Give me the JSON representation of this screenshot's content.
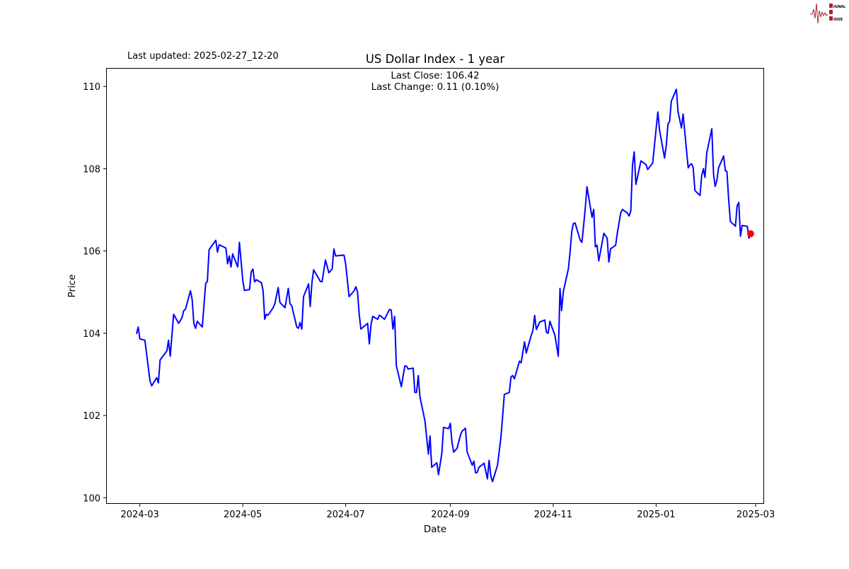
{
  "header": {
    "last_updated": "Last updated: 2025-02-27_12-20",
    "logo_text": "SIGNAL 2 NOISE"
  },
  "chart_data": {
    "type": "line",
    "title": "US Dollar Index - 1 year",
    "annotation_lines": [
      "Last Close: 106.42",
      "Last Change: 0.11 (0.10%)"
    ],
    "xlabel": "Date",
    "ylabel": "Price",
    "xlim": [
      "2024-02-10",
      "2025-03-06"
    ],
    "ylim": [
      99.85,
      110.45
    ],
    "x_ticks": [
      "2024-03",
      "2024-05",
      "2024-07",
      "2024-09",
      "2024-11",
      "2025-01",
      "2025-03"
    ],
    "y_ticks": [
      100,
      102,
      104,
      106,
      108,
      110
    ],
    "grid": false,
    "line_color": "#0000ff",
    "last_point_color": "#ff0000",
    "last_point": {
      "x": "2025-02-26",
      "y": 106.42
    },
    "series": [
      {
        "x": [
          "2024-02-28",
          "2024-02-29",
          "2024-03-01",
          "2024-03-04",
          "2024-03-07",
          "2024-03-08",
          "2024-03-11",
          "2024-03-12",
          "2024-03-13",
          "2024-03-17",
          "2024-03-18",
          "2024-03-19",
          "2024-03-21",
          "2024-03-24",
          "2024-03-26",
          "2024-03-27",
          "2024-03-28",
          "2024-03-31",
          "2024-04-01",
          "2024-04-02",
          "2024-04-03",
          "2024-04-04",
          "2024-04-07",
          "2024-04-09",
          "2024-04-10",
          "2024-04-11",
          "2024-04-15",
          "2024-04-16",
          "2024-04-17",
          "2024-04-21",
          "2024-04-22",
          "2024-04-23",
          "2024-04-24",
          "2024-04-25",
          "2024-04-28",
          "2024-04-29",
          "2024-05-01",
          "2024-05-02",
          "2024-05-05",
          "2024-05-06",
          "2024-05-07",
          "2024-05-08",
          "2024-05-09",
          "2024-05-12",
          "2024-05-13",
          "2024-05-14",
          "2024-05-15",
          "2024-05-16",
          "2024-05-19",
          "2024-05-20",
          "2024-05-22",
          "2024-05-23",
          "2024-05-26",
          "2024-05-28",
          "2024-05-29",
          "2024-05-30",
          "2024-06-02",
          "2024-06-03",
          "2024-06-04",
          "2024-06-05",
          "2024-06-06",
          "2024-06-09",
          "2024-06-10",
          "2024-06-11",
          "2024-06-12",
          "2024-06-16",
          "2024-06-17",
          "2024-06-19",
          "2024-06-21",
          "2024-06-23",
          "2024-06-24",
          "2024-06-25",
          "2024-06-30",
          "2024-07-01",
          "2024-07-03",
          "2024-07-06",
          "2024-07-07",
          "2024-07-08",
          "2024-07-09",
          "2024-07-10",
          "2024-07-14",
          "2024-07-15",
          "2024-07-16",
          "2024-07-17",
          "2024-07-20",
          "2024-07-21",
          "2024-07-24",
          "2024-07-27",
          "2024-07-28",
          "2024-07-29",
          "2024-07-30",
          "2024-07-31",
          "2024-08-03",
          "2024-08-05",
          "2024-08-06",
          "2024-08-07",
          "2024-08-10",
          "2024-08-11",
          "2024-08-12",
          "2024-08-13",
          "2024-08-14",
          "2024-08-17",
          "2024-08-19",
          "2024-08-20",
          "2024-08-21",
          "2024-08-24",
          "2024-08-25",
          "2024-08-27",
          "2024-08-28",
          "2024-08-31",
          "2024-09-01",
          "2024-09-02",
          "2024-09-03",
          "2024-09-05",
          "2024-09-07",
          "2024-09-08",
          "2024-09-10",
          "2024-09-11",
          "2024-09-14",
          "2024-09-15",
          "2024-09-16",
          "2024-09-17",
          "2024-09-18",
          "2024-09-21",
          "2024-09-23",
          "2024-09-24",
          "2024-09-25",
          "2024-09-26",
          "2024-09-29",
          "2024-10-01",
          "2024-10-02",
          "2024-10-03",
          "2024-10-06",
          "2024-10-07",
          "2024-10-08",
          "2024-10-09",
          "2024-10-12",
          "2024-10-13",
          "2024-10-14",
          "2024-10-15",
          "2024-10-16",
          "2024-10-19",
          "2024-10-20",
          "2024-10-21",
          "2024-10-22",
          "2024-10-24",
          "2024-10-27",
          "2024-10-28",
          "2024-10-29",
          "2024-10-30",
          "2024-11-02",
          "2024-11-04",
          "2024-11-05",
          "2024-11-06",
          "2024-11-07",
          "2024-11-10",
          "2024-11-11",
          "2024-11-12",
          "2024-11-13",
          "2024-11-14",
          "2024-11-17",
          "2024-11-18",
          "2024-11-19",
          "2024-11-20",
          "2024-11-21",
          "2024-11-24",
          "2024-11-25",
          "2024-11-26",
          "2024-11-27",
          "2024-11-28",
          "2024-12-01",
          "2024-12-03",
          "2024-12-04",
          "2024-12-05",
          "2024-12-08",
          "2024-12-09",
          "2024-12-11",
          "2024-12-12",
          "2024-12-15",
          "2024-12-16",
          "2024-12-17",
          "2024-12-18",
          "2024-12-19",
          "2024-12-20",
          "2024-12-23",
          "2024-12-26",
          "2024-12-27",
          "2024-12-30",
          "2024-12-31",
          "2025-01-02",
          "2025-01-03",
          "2025-01-06",
          "2025-01-07",
          "2025-01-08",
          "2025-01-09",
          "2025-01-10",
          "2025-01-13",
          "2025-01-14",
          "2025-01-16",
          "2025-01-17",
          "2025-01-20",
          "2025-01-21",
          "2025-01-22",
          "2025-01-23",
          "2025-01-24",
          "2025-01-27",
          "2025-01-28",
          "2025-01-29",
          "2025-01-30",
          "2025-01-31",
          "2025-02-03",
          "2025-02-04",
          "2025-02-05",
          "2025-02-06",
          "2025-02-07",
          "2025-02-10",
          "2025-02-11",
          "2025-02-12",
          "2025-02-13",
          "2025-02-14",
          "2025-02-17",
          "2025-02-18",
          "2025-02-19",
          "2025-02-20",
          "2025-02-21",
          "2025-02-24",
          "2025-02-25",
          "2025-02-26"
        ],
        "y": [
          103.98,
          104.15,
          103.86,
          103.83,
          102.84,
          102.72,
          102.92,
          102.79,
          103.35,
          103.57,
          103.83,
          103.44,
          104.46,
          104.24,
          104.38,
          104.55,
          104.58,
          105.03,
          104.82,
          104.24,
          104.12,
          104.29,
          104.15,
          105.21,
          105.26,
          106.03,
          106.26,
          105.97,
          106.15,
          106.07,
          105.69,
          105.88,
          105.61,
          105.93,
          105.61,
          106.21,
          105.28,
          105.04,
          105.06,
          105.49,
          105.56,
          105.25,
          105.3,
          105.23,
          105.04,
          104.34,
          104.46,
          104.44,
          104.62,
          104.72,
          105.11,
          104.75,
          104.62,
          105.09,
          104.72,
          104.67,
          104.15,
          104.12,
          104.26,
          104.1,
          104.89,
          105.2,
          104.65,
          105.23,
          105.54,
          105.26,
          105.25,
          105.78,
          105.47,
          105.56,
          106.05,
          105.88,
          105.9,
          105.68,
          104.89,
          105.03,
          105.13,
          105.01,
          104.46,
          104.1,
          104.24,
          103.74,
          104.21,
          104.41,
          104.34,
          104.44,
          104.34,
          104.58,
          104.56,
          104.1,
          104.41,
          103.21,
          102.7,
          103.2,
          103.2,
          103.13,
          103.15,
          102.56,
          102.56,
          102.97,
          102.46,
          101.86,
          101.06,
          101.5,
          100.74,
          100.85,
          100.56,
          101.08,
          101.71,
          101.68,
          101.81,
          101.35,
          101.11,
          101.2,
          101.52,
          101.62,
          101.69,
          101.11,
          100.79,
          100.89,
          100.6,
          100.62,
          100.74,
          100.84,
          100.46,
          100.91,
          100.53,
          100.39,
          100.79,
          101.47,
          101.97,
          102.51,
          102.56,
          102.94,
          102.97,
          102.89,
          103.32,
          103.28,
          103.54,
          103.79,
          103.52,
          103.95,
          104.07,
          104.43,
          104.09,
          104.27,
          104.32,
          104.02,
          104.0,
          104.29,
          103.95,
          103.44,
          105.09,
          104.55,
          105.01,
          105.57,
          105.98,
          106.48,
          106.67,
          106.68,
          106.26,
          106.21,
          106.6,
          107.03,
          107.56,
          106.82,
          107.01,
          106.1,
          106.14,
          105.76,
          106.43,
          106.31,
          105.73,
          106.05,
          106.14,
          106.43,
          106.92,
          107.01,
          106.92,
          106.85,
          106.97,
          108.09,
          108.41,
          107.62,
          108.19,
          108.1,
          107.98,
          108.14,
          108.56,
          109.38,
          108.94,
          108.26,
          108.56,
          109.08,
          109.15,
          109.64,
          109.93,
          109.38,
          108.99,
          109.33,
          108.02,
          108.09,
          108.12,
          108.02,
          107.47,
          107.35,
          107.83,
          108.0,
          107.79,
          108.38,
          108.97,
          107.88,
          107.57,
          107.71,
          108.02,
          108.31,
          107.95,
          107.93,
          107.25,
          106.72,
          106.6,
          107.09,
          107.18,
          106.36,
          106.62,
          106.6,
          106.31,
          106.42
        ]
      }
    ]
  }
}
